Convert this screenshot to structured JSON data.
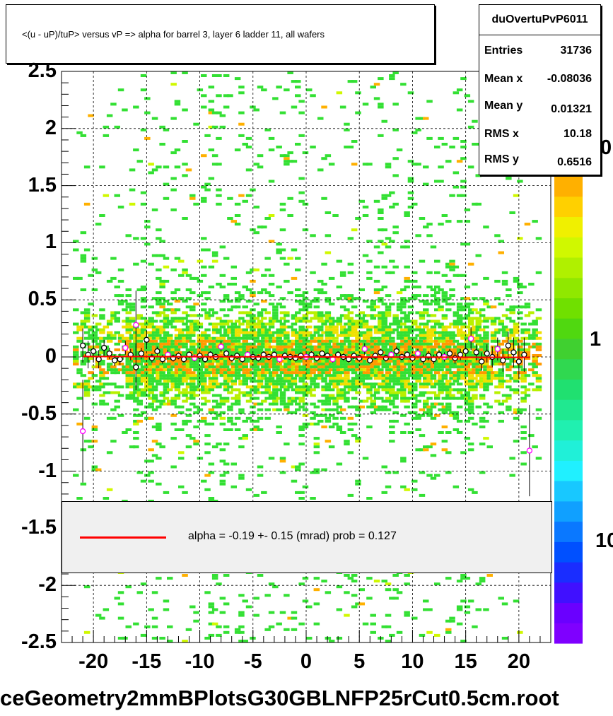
{
  "title": "<(u - uP)/tuP> versus   vP => alpha for barrel 3, layer 6 ladder 11, all wafers",
  "stats": {
    "name": "duOvertuPvP6011",
    "rows": [
      {
        "label": "Entries",
        "value": "31736"
      },
      {
        "label": "Mean x",
        "value": "-0.08036"
      },
      {
        "label": "Mean y",
        "value": "0.01321"
      },
      {
        "label": "RMS x",
        "value": "10.18"
      },
      {
        "label": "RMS y",
        "value": "0.6516"
      }
    ]
  },
  "legend": {
    "text": "alpha =   -0.19 +-  0.15 (mrad) prob = 0.127",
    "line_color": "#ff0000"
  },
  "footer": "ceGeometry2mmBPlotsG30GBLNFP25rCut0.5cm.root",
  "colors": {
    "fit_line": "#ff0000",
    "marker_black": "#000000",
    "marker_magenta": "#ff00ff",
    "legend_bg": "#f0f0f0"
  },
  "chart_data": {
    "type": "heatmap",
    "x_ticks": [
      "-20",
      "-15",
      "-10",
      "-5",
      "0",
      "5",
      "10",
      "15",
      "20"
    ],
    "y_ticks": [
      "2.5",
      "2",
      "1.5",
      "1",
      "0.5",
      "0",
      "-0.5",
      "-1",
      "-1.5",
      "-2",
      "-2.5"
    ],
    "z_ticks": [
      "0",
      "1",
      "10"
    ],
    "xlim": [
      -23,
      23
    ],
    "ylim": [
      -2.5,
      2.5
    ],
    "grid": true,
    "fit_line": {
      "x": [
        -21,
        21
      ],
      "y": [
        0.004,
        -0.004
      ]
    },
    "profile_points": [
      {
        "x": -21.0,
        "y": 0.1,
        "err": 0.15,
        "c": "k"
      },
      {
        "x": -21.0,
        "y": -0.65,
        "err": 0.45,
        "c": "m"
      },
      {
        "x": -20.5,
        "y": 0.02,
        "err": 0.12,
        "c": "k"
      },
      {
        "x": -20.0,
        "y": 0.05,
        "err": 0.1,
        "c": "k"
      },
      {
        "x": -19.5,
        "y": -0.02,
        "err": 0.08,
        "c": "k"
      },
      {
        "x": -19.0,
        "y": 0.08,
        "err": 0.07,
        "c": "k"
      },
      {
        "x": -18.5,
        "y": 0.03,
        "err": 0.05,
        "c": "k"
      },
      {
        "x": -18.0,
        "y": -0.03,
        "err": 0.05,
        "c": "k"
      },
      {
        "x": -17.5,
        "y": -0.02,
        "err": 0.05,
        "c": "k"
      },
      {
        "x": -17.0,
        "y": 0.08,
        "err": 0.06,
        "c": "m"
      },
      {
        "x": -16.5,
        "y": 0.02,
        "err": 0.05,
        "c": "k"
      },
      {
        "x": -16.0,
        "y": 0.28,
        "err": 0.3,
        "c": "m"
      },
      {
        "x": -16.0,
        "y": -0.09,
        "err": 0.2,
        "c": "k"
      },
      {
        "x": -15.5,
        "y": 0.03,
        "err": 0.05,
        "c": "k"
      },
      {
        "x": -15.0,
        "y": 0.15,
        "err": 0.08,
        "c": "k"
      },
      {
        "x": -14.5,
        "y": -0.01,
        "err": 0.04,
        "c": "k"
      },
      {
        "x": -14.0,
        "y": 0.05,
        "err": 0.04,
        "c": "k"
      },
      {
        "x": -13.5,
        "y": -0.02,
        "err": 0.04,
        "c": "k"
      },
      {
        "x": -13.0,
        "y": 0.02,
        "err": 0.04,
        "c": "m"
      },
      {
        "x": -12.5,
        "y": -0.01,
        "err": 0.03,
        "c": "k"
      },
      {
        "x": -12.0,
        "y": 0.01,
        "err": 0.03,
        "c": "k"
      },
      {
        "x": -11.5,
        "y": -0.02,
        "err": 0.03,
        "c": "k"
      },
      {
        "x": -11.0,
        "y": 0.02,
        "err": 0.03,
        "c": "k"
      },
      {
        "x": -10.5,
        "y": -0.01,
        "err": 0.03,
        "c": "m"
      },
      {
        "x": -10.0,
        "y": 0.01,
        "err": 0.03,
        "c": "k"
      },
      {
        "x": -9.5,
        "y": -0.02,
        "err": 0.03,
        "c": "k"
      },
      {
        "x": -9.0,
        "y": 0.02,
        "err": 0.03,
        "c": "k"
      },
      {
        "x": -8.5,
        "y": 0.0,
        "err": 0.03,
        "c": "k"
      },
      {
        "x": -8.0,
        "y": 0.09,
        "err": 0.05,
        "c": "m"
      },
      {
        "x": -7.5,
        "y": 0.03,
        "err": 0.03,
        "c": "k"
      },
      {
        "x": -7.0,
        "y": -0.01,
        "err": 0.03,
        "c": "k"
      },
      {
        "x": -6.5,
        "y": 0.01,
        "err": 0.03,
        "c": "k"
      },
      {
        "x": -6.0,
        "y": -0.02,
        "err": 0.03,
        "c": "k"
      },
      {
        "x": -5.5,
        "y": 0.02,
        "err": 0.03,
        "c": "m"
      },
      {
        "x": -5.0,
        "y": 0.0,
        "err": 0.03,
        "c": "k"
      },
      {
        "x": -4.5,
        "y": -0.01,
        "err": 0.03,
        "c": "k"
      },
      {
        "x": -4.0,
        "y": 0.02,
        "err": 0.03,
        "c": "k"
      },
      {
        "x": -3.5,
        "y": 0.0,
        "err": 0.03,
        "c": "k"
      },
      {
        "x": -3.0,
        "y": 0.02,
        "err": 0.03,
        "c": "k"
      },
      {
        "x": -2.5,
        "y": -0.02,
        "err": 0.03,
        "c": "m"
      },
      {
        "x": -2.0,
        "y": 0.01,
        "err": 0.03,
        "c": "k"
      },
      {
        "x": -1.5,
        "y": 0.0,
        "err": 0.03,
        "c": "k"
      },
      {
        "x": -1.0,
        "y": -0.01,
        "err": 0.03,
        "c": "k"
      },
      {
        "x": -0.5,
        "y": 0.01,
        "err": 0.03,
        "c": "k"
      },
      {
        "x": 0.0,
        "y": 0.0,
        "err": 0.03,
        "c": "m"
      },
      {
        "x": 0.5,
        "y": 0.02,
        "err": 0.03,
        "c": "k"
      },
      {
        "x": 1.0,
        "y": -0.01,
        "err": 0.03,
        "c": "k"
      },
      {
        "x": 1.5,
        "y": 0.03,
        "err": 0.03,
        "c": "k"
      },
      {
        "x": 2.0,
        "y": 0.01,
        "err": 0.03,
        "c": "k"
      },
      {
        "x": 2.5,
        "y": -0.02,
        "err": 0.03,
        "c": "m"
      },
      {
        "x": 3.0,
        "y": 0.02,
        "err": 0.03,
        "c": "k"
      },
      {
        "x": 3.5,
        "y": 0.0,
        "err": 0.03,
        "c": "k"
      },
      {
        "x": 4.0,
        "y": -0.02,
        "err": 0.03,
        "c": "k"
      },
      {
        "x": 4.5,
        "y": 0.01,
        "err": 0.03,
        "c": "k"
      },
      {
        "x": 5.0,
        "y": -0.01,
        "err": 0.03,
        "c": "k"
      },
      {
        "x": 5.5,
        "y": 0.07,
        "err": 0.05,
        "c": "m"
      },
      {
        "x": 6.0,
        "y": -0.03,
        "err": 0.03,
        "c": "k"
      },
      {
        "x": 6.5,
        "y": 0.01,
        "err": 0.03,
        "c": "k"
      },
      {
        "x": 7.0,
        "y": 0.04,
        "err": 0.03,
        "c": "k"
      },
      {
        "x": 7.5,
        "y": -0.01,
        "err": 0.03,
        "c": "k"
      },
      {
        "x": 8.0,
        "y": 0.02,
        "err": 0.03,
        "c": "m"
      },
      {
        "x": 8.5,
        "y": 0.05,
        "err": 0.04,
        "c": "k"
      },
      {
        "x": 9.0,
        "y": 0.0,
        "err": 0.03,
        "c": "k"
      },
      {
        "x": 9.5,
        "y": 0.02,
        "err": 0.03,
        "c": "k"
      },
      {
        "x": 10.0,
        "y": -0.01,
        "err": 0.03,
        "c": "k"
      },
      {
        "x": 10.5,
        "y": 0.03,
        "err": 0.04,
        "c": "m"
      },
      {
        "x": 11.0,
        "y": -0.02,
        "err": 0.04,
        "c": "k"
      },
      {
        "x": 11.5,
        "y": 0.01,
        "err": 0.04,
        "c": "k"
      },
      {
        "x": 12.0,
        "y": -0.02,
        "err": 0.04,
        "c": "k"
      },
      {
        "x": 12.5,
        "y": 0.02,
        "err": 0.04,
        "c": "k"
      },
      {
        "x": 13.0,
        "y": 0.0,
        "err": 0.04,
        "c": "m"
      },
      {
        "x": 13.5,
        "y": 0.03,
        "err": 0.04,
        "c": "k"
      },
      {
        "x": 14.0,
        "y": -0.01,
        "err": 0.05,
        "c": "k"
      },
      {
        "x": 14.5,
        "y": 0.02,
        "err": 0.05,
        "c": "k"
      },
      {
        "x": 15.0,
        "y": 0.05,
        "err": 0.06,
        "c": "k"
      },
      {
        "x": 15.5,
        "y": 0.16,
        "err": 0.1,
        "c": "m"
      },
      {
        "x": 16.0,
        "y": 0.04,
        "err": 0.07,
        "c": "k"
      },
      {
        "x": 16.5,
        "y": -0.04,
        "err": 0.08,
        "c": "k"
      },
      {
        "x": 17.0,
        "y": 0.03,
        "err": 0.08,
        "c": "k"
      },
      {
        "x": 17.5,
        "y": 0.0,
        "err": 0.09,
        "c": "k"
      },
      {
        "x": 18.0,
        "y": 0.07,
        "err": 0.1,
        "c": "m"
      },
      {
        "x": 18.5,
        "y": -0.03,
        "err": 0.1,
        "c": "k"
      },
      {
        "x": 19.0,
        "y": 0.1,
        "err": 0.12,
        "c": "k"
      },
      {
        "x": 19.5,
        "y": 0.04,
        "err": 0.13,
        "c": "k"
      },
      {
        "x": 20.0,
        "y": -0.04,
        "err": 0.15,
        "c": "k"
      },
      {
        "x": 20.5,
        "y": 0.02,
        "err": 0.15,
        "c": "k"
      },
      {
        "x": 21.0,
        "y": -0.82,
        "err": 0.4,
        "c": "m"
      }
    ]
  }
}
